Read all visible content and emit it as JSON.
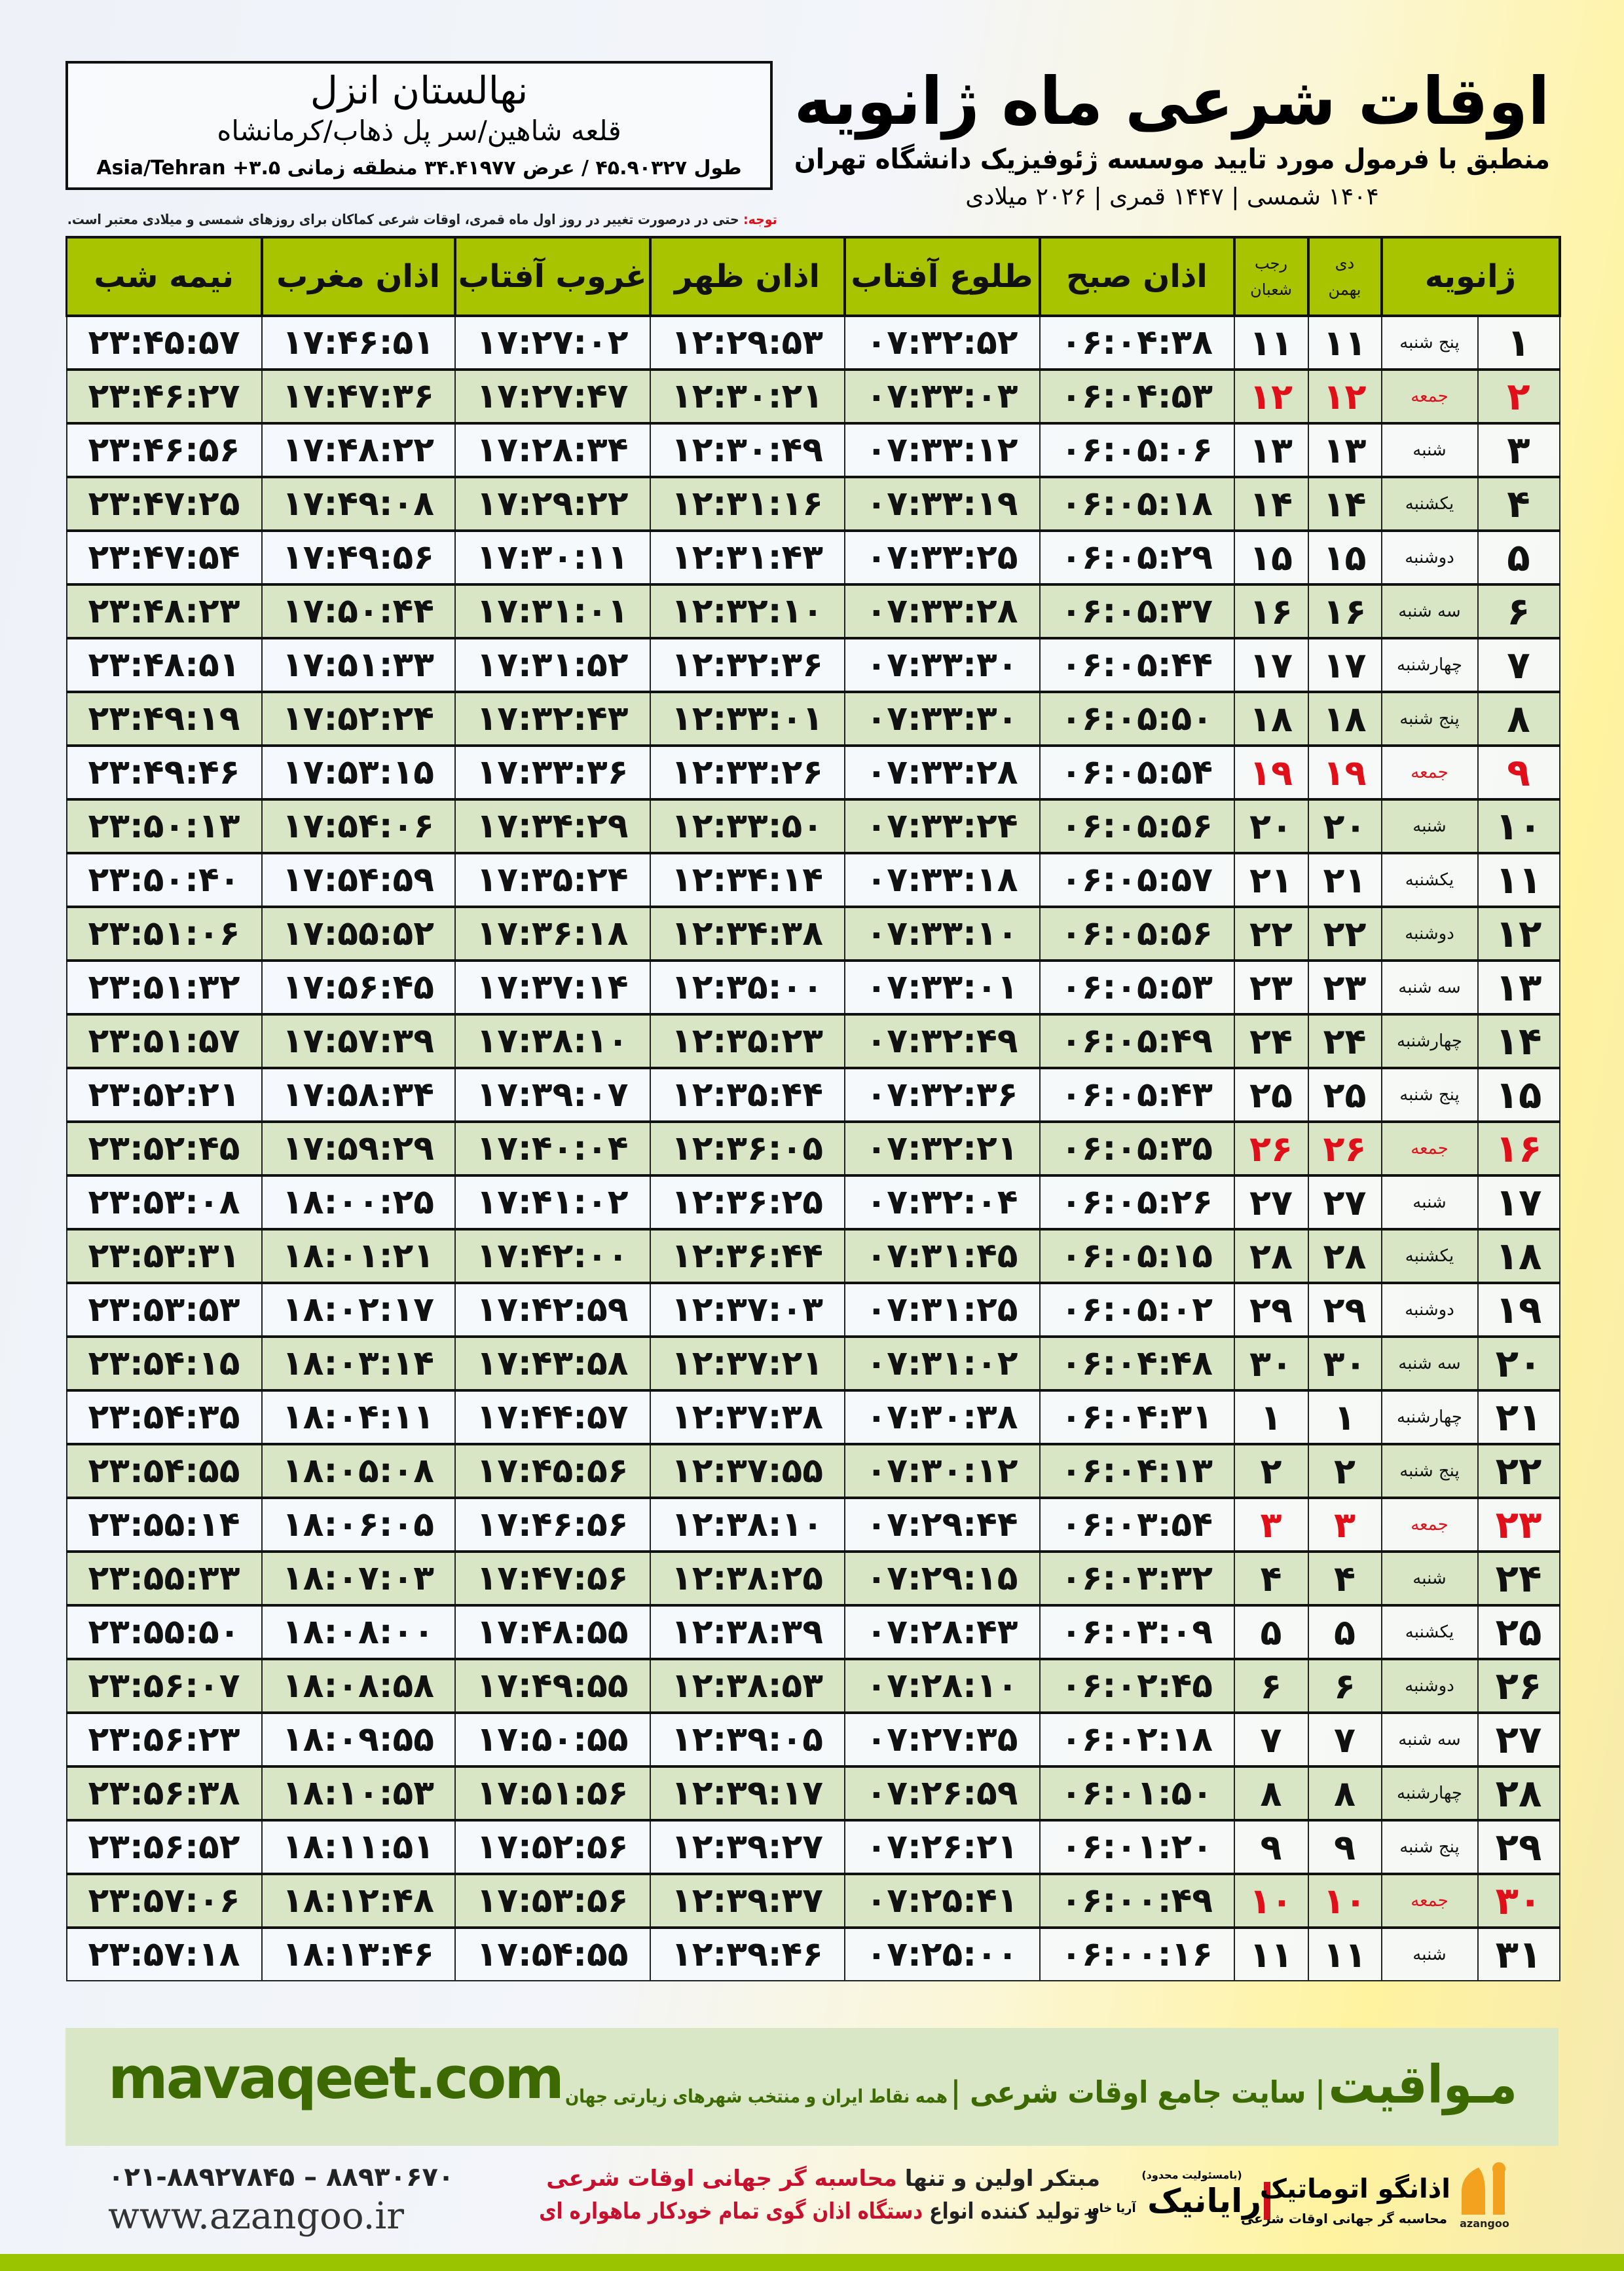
{
  "header": {
    "title": "اوقات شرعی ماه ژانویه",
    "subtitle": "منطبق با فرمول مورد تایید موسسه ژئوفیزیک دانشگاه تهران",
    "years": "۱۴۰۴ شمسی | ۱۴۴۷ قمری | ۲۰۲۶ میلادی"
  },
  "location": {
    "city": "نهالستان انزل",
    "region": "قلعه شاهین/سر پل ذهاب/کرمانشاه",
    "coords": "طول ۴۵.۹۰۳۲۷ / عرض ۳۴.۴۱۹۷۷ منطقه زمانی ۳.۵+ Asia/Tehran"
  },
  "note": {
    "label": "توجه:",
    "text": " حتی در درصورت تغییر در روز اول ماه قمری، اوقات شرعی کماکان برای روزهای شمسی و میلادی معتبر است."
  },
  "columns": {
    "month": "ژانویه",
    "shamsi_top": "دی",
    "shamsi_bottom": "بهمن",
    "qamari_top": "رجب",
    "qamari_bottom": "شعبان",
    "fajr": "اذان صبح",
    "sunrise": "طلوع آفتاب",
    "dhuhr": "اذان ظهر",
    "sunset": "غروب آفتاب",
    "maghrib": "اذان مغرب",
    "midnight": "نیمه شب"
  },
  "colors": {
    "header_green": "#a8c400",
    "row_green": "#d8e6c6",
    "friday_red": "#e0101a",
    "brand_green": "#3c6a00"
  },
  "rows": [
    {
      "day": "۱",
      "weekday": "پنج شنبه",
      "shamsi": "۱۱",
      "qamari": "۱۱",
      "fajr": "۰۶:۰۴:۳۸",
      "sunrise": "۰۷:۳۲:۵۲",
      "dhuhr": "۱۲:۲۹:۵۳",
      "sunset": "۱۷:۲۷:۰۲",
      "maghrib": "۱۷:۴۶:۵۱",
      "midnight": "۲۳:۴۵:۵۷",
      "friday": false
    },
    {
      "day": "۲",
      "weekday": "جمعه",
      "shamsi": "۱۲",
      "qamari": "۱۲",
      "fajr": "۰۶:۰۴:۵۳",
      "sunrise": "۰۷:۳۳:۰۳",
      "dhuhr": "۱۲:۳۰:۲۱",
      "sunset": "۱۷:۲۷:۴۷",
      "maghrib": "۱۷:۴۷:۳۶",
      "midnight": "۲۳:۴۶:۲۷",
      "friday": true
    },
    {
      "day": "۳",
      "weekday": "شنبه",
      "shamsi": "۱۳",
      "qamari": "۱۳",
      "fajr": "۰۶:۰۵:۰۶",
      "sunrise": "۰۷:۳۳:۱۲",
      "dhuhr": "۱۲:۳۰:۴۹",
      "sunset": "۱۷:۲۸:۳۴",
      "maghrib": "۱۷:۴۸:۲۲",
      "midnight": "۲۳:۴۶:۵۶",
      "friday": false
    },
    {
      "day": "۴",
      "weekday": "یکشنبه",
      "shamsi": "۱۴",
      "qamari": "۱۴",
      "fajr": "۰۶:۰۵:۱۸",
      "sunrise": "۰۷:۳۳:۱۹",
      "dhuhr": "۱۲:۳۱:۱۶",
      "sunset": "۱۷:۲۹:۲۲",
      "maghrib": "۱۷:۴۹:۰۸",
      "midnight": "۲۳:۴۷:۲۵",
      "friday": false
    },
    {
      "day": "۵",
      "weekday": "دوشنبه",
      "shamsi": "۱۵",
      "qamari": "۱۵",
      "fajr": "۰۶:۰۵:۲۹",
      "sunrise": "۰۷:۳۳:۲۵",
      "dhuhr": "۱۲:۳۱:۴۳",
      "sunset": "۱۷:۳۰:۱۱",
      "maghrib": "۱۷:۴۹:۵۶",
      "midnight": "۲۳:۴۷:۵۴",
      "friday": false
    },
    {
      "day": "۶",
      "weekday": "سه شنبه",
      "shamsi": "۱۶",
      "qamari": "۱۶",
      "fajr": "۰۶:۰۵:۳۷",
      "sunrise": "۰۷:۳۳:۲۸",
      "dhuhr": "۱۲:۳۲:۱۰",
      "sunset": "۱۷:۳۱:۰۱",
      "maghrib": "۱۷:۵۰:۴۴",
      "midnight": "۲۳:۴۸:۲۳",
      "friday": false
    },
    {
      "day": "۷",
      "weekday": "چهارشنبه",
      "shamsi": "۱۷",
      "qamari": "۱۷",
      "fajr": "۰۶:۰۵:۴۴",
      "sunrise": "۰۷:۳۳:۳۰",
      "dhuhr": "۱۲:۳۲:۳۶",
      "sunset": "۱۷:۳۱:۵۲",
      "maghrib": "۱۷:۵۱:۳۳",
      "midnight": "۲۳:۴۸:۵۱",
      "friday": false
    },
    {
      "day": "۸",
      "weekday": "پنج شنبه",
      "shamsi": "۱۸",
      "qamari": "۱۸",
      "fajr": "۰۶:۰۵:۵۰",
      "sunrise": "۰۷:۳۳:۳۰",
      "dhuhr": "۱۲:۳۳:۰۱",
      "sunset": "۱۷:۳۲:۴۳",
      "maghrib": "۱۷:۵۲:۲۴",
      "midnight": "۲۳:۴۹:۱۹",
      "friday": false
    },
    {
      "day": "۹",
      "weekday": "جمعه",
      "shamsi": "۱۹",
      "qamari": "۱۹",
      "fajr": "۰۶:۰۵:۵۴",
      "sunrise": "۰۷:۳۳:۲۸",
      "dhuhr": "۱۲:۳۳:۲۶",
      "sunset": "۱۷:۳۳:۳۶",
      "maghrib": "۱۷:۵۳:۱۵",
      "midnight": "۲۳:۴۹:۴۶",
      "friday": true
    },
    {
      "day": "۱۰",
      "weekday": "شنبه",
      "shamsi": "۲۰",
      "qamari": "۲۰",
      "fajr": "۰۶:۰۵:۵۶",
      "sunrise": "۰۷:۳۳:۲۴",
      "dhuhr": "۱۲:۳۳:۵۰",
      "sunset": "۱۷:۳۴:۲۹",
      "maghrib": "۱۷:۵۴:۰۶",
      "midnight": "۲۳:۵۰:۱۳",
      "friday": false
    },
    {
      "day": "۱۱",
      "weekday": "یکشنبه",
      "shamsi": "۲۱",
      "qamari": "۲۱",
      "fajr": "۰۶:۰۵:۵۷",
      "sunrise": "۰۷:۳۳:۱۸",
      "dhuhr": "۱۲:۳۴:۱۴",
      "sunset": "۱۷:۳۵:۲۴",
      "maghrib": "۱۷:۵۴:۵۹",
      "midnight": "۲۳:۵۰:۴۰",
      "friday": false
    },
    {
      "day": "۱۲",
      "weekday": "دوشنبه",
      "shamsi": "۲۲",
      "qamari": "۲۲",
      "fajr": "۰۶:۰۵:۵۶",
      "sunrise": "۰۷:۳۳:۱۰",
      "dhuhr": "۱۲:۳۴:۳۸",
      "sunset": "۱۷:۳۶:۱۸",
      "maghrib": "۱۷:۵۵:۵۲",
      "midnight": "۲۳:۵۱:۰۶",
      "friday": false
    },
    {
      "day": "۱۳",
      "weekday": "سه شنبه",
      "shamsi": "۲۳",
      "qamari": "۲۳",
      "fajr": "۰۶:۰۵:۵۳",
      "sunrise": "۰۷:۳۳:۰۱",
      "dhuhr": "۱۲:۳۵:۰۰",
      "sunset": "۱۷:۳۷:۱۴",
      "maghrib": "۱۷:۵۶:۴۵",
      "midnight": "۲۳:۵۱:۳۲",
      "friday": false
    },
    {
      "day": "۱۴",
      "weekday": "چهارشنبه",
      "shamsi": "۲۴",
      "qamari": "۲۴",
      "fajr": "۰۶:۰۵:۴۹",
      "sunrise": "۰۷:۳۲:۴۹",
      "dhuhr": "۱۲:۳۵:۲۳",
      "sunset": "۱۷:۳۸:۱۰",
      "maghrib": "۱۷:۵۷:۳۹",
      "midnight": "۲۳:۵۱:۵۷",
      "friday": false
    },
    {
      "day": "۱۵",
      "weekday": "پنج شنبه",
      "shamsi": "۲۵",
      "qamari": "۲۵",
      "fajr": "۰۶:۰۵:۴۳",
      "sunrise": "۰۷:۳۲:۳۶",
      "dhuhr": "۱۲:۳۵:۴۴",
      "sunset": "۱۷:۳۹:۰۷",
      "maghrib": "۱۷:۵۸:۳۴",
      "midnight": "۲۳:۵۲:۲۱",
      "friday": false
    },
    {
      "day": "۱۶",
      "weekday": "جمعه",
      "shamsi": "۲۶",
      "qamari": "۲۶",
      "fajr": "۰۶:۰۵:۳۵",
      "sunrise": "۰۷:۳۲:۲۱",
      "dhuhr": "۱۲:۳۶:۰۵",
      "sunset": "۱۷:۴۰:۰۴",
      "maghrib": "۱۷:۵۹:۲۹",
      "midnight": "۲۳:۵۲:۴۵",
      "friday": true
    },
    {
      "day": "۱۷",
      "weekday": "شنبه",
      "shamsi": "۲۷",
      "qamari": "۲۷",
      "fajr": "۰۶:۰۵:۲۶",
      "sunrise": "۰۷:۳۲:۰۴",
      "dhuhr": "۱۲:۳۶:۲۵",
      "sunset": "۱۷:۴۱:۰۲",
      "maghrib": "۱۸:۰۰:۲۵",
      "midnight": "۲۳:۵۳:۰۸",
      "friday": false
    },
    {
      "day": "۱۸",
      "weekday": "یکشنبه",
      "shamsi": "۲۸",
      "qamari": "۲۸",
      "fajr": "۰۶:۰۵:۱۵",
      "sunrise": "۰۷:۳۱:۴۵",
      "dhuhr": "۱۲:۳۶:۴۴",
      "sunset": "۱۷:۴۲:۰۰",
      "maghrib": "۱۸:۰۱:۲۱",
      "midnight": "۲۳:۵۳:۳۱",
      "friday": false
    },
    {
      "day": "۱۹",
      "weekday": "دوشنبه",
      "shamsi": "۲۹",
      "qamari": "۲۹",
      "fajr": "۰۶:۰۵:۰۲",
      "sunrise": "۰۷:۳۱:۲۵",
      "dhuhr": "۱۲:۳۷:۰۳",
      "sunset": "۱۷:۴۲:۵۹",
      "maghrib": "۱۸:۰۲:۱۷",
      "midnight": "۲۳:۵۳:۵۳",
      "friday": false
    },
    {
      "day": "۲۰",
      "weekday": "سه شنبه",
      "shamsi": "۳۰",
      "qamari": "۳۰",
      "fajr": "۰۶:۰۴:۴۸",
      "sunrise": "۰۷:۳۱:۰۲",
      "dhuhr": "۱۲:۳۷:۲۱",
      "sunset": "۱۷:۴۳:۵۸",
      "maghrib": "۱۸:۰۳:۱۴",
      "midnight": "۲۳:۵۴:۱۵",
      "friday": false
    },
    {
      "day": "۲۱",
      "weekday": "چهارشنبه",
      "shamsi": "۱",
      "qamari": "۱",
      "fajr": "۰۶:۰۴:۳۱",
      "sunrise": "۰۷:۳۰:۳۸",
      "dhuhr": "۱۲:۳۷:۳۸",
      "sunset": "۱۷:۴۴:۵۷",
      "maghrib": "۱۸:۰۴:۱۱",
      "midnight": "۲۳:۵۴:۳۵",
      "friday": false
    },
    {
      "day": "۲۲",
      "weekday": "پنج شنبه",
      "shamsi": "۲",
      "qamari": "۲",
      "fajr": "۰۶:۰۴:۱۳",
      "sunrise": "۰۷:۳۰:۱۲",
      "dhuhr": "۱۲:۳۷:۵۵",
      "sunset": "۱۷:۴۵:۵۶",
      "maghrib": "۱۸:۰۵:۰۸",
      "midnight": "۲۳:۵۴:۵۵",
      "friday": false
    },
    {
      "day": "۲۳",
      "weekday": "جمعه",
      "shamsi": "۳",
      "qamari": "۳",
      "fajr": "۰۶:۰۳:۵۴",
      "sunrise": "۰۷:۲۹:۴۴",
      "dhuhr": "۱۲:۳۸:۱۰",
      "sunset": "۱۷:۴۶:۵۶",
      "maghrib": "۱۸:۰۶:۰۵",
      "midnight": "۲۳:۵۵:۱۴",
      "friday": true
    },
    {
      "day": "۲۴",
      "weekday": "شنبه",
      "shamsi": "۴",
      "qamari": "۴",
      "fajr": "۰۶:۰۳:۳۲",
      "sunrise": "۰۷:۲۹:۱۵",
      "dhuhr": "۱۲:۳۸:۲۵",
      "sunset": "۱۷:۴۷:۵۶",
      "maghrib": "۱۸:۰۷:۰۳",
      "midnight": "۲۳:۵۵:۳۳",
      "friday": false
    },
    {
      "day": "۲۵",
      "weekday": "یکشنبه",
      "shamsi": "۵",
      "qamari": "۵",
      "fajr": "۰۶:۰۳:۰۹",
      "sunrise": "۰۷:۲۸:۴۳",
      "dhuhr": "۱۲:۳۸:۳۹",
      "sunset": "۱۷:۴۸:۵۵",
      "maghrib": "۱۸:۰۸:۰۰",
      "midnight": "۲۳:۵۵:۵۰",
      "friday": false
    },
    {
      "day": "۲۶",
      "weekday": "دوشنبه",
      "shamsi": "۶",
      "qamari": "۶",
      "fajr": "۰۶:۰۲:۴۵",
      "sunrise": "۰۷:۲۸:۱۰",
      "dhuhr": "۱۲:۳۸:۵۳",
      "sunset": "۱۷:۴۹:۵۵",
      "maghrib": "۱۸:۰۸:۵۸",
      "midnight": "۲۳:۵۶:۰۷",
      "friday": false
    },
    {
      "day": "۲۷",
      "weekday": "سه شنبه",
      "shamsi": "۷",
      "qamari": "۷",
      "fajr": "۰۶:۰۲:۱۸",
      "sunrise": "۰۷:۲۷:۳۵",
      "dhuhr": "۱۲:۳۹:۰۵",
      "sunset": "۱۷:۵۰:۵۵",
      "maghrib": "۱۸:۰۹:۵۵",
      "midnight": "۲۳:۵۶:۲۳",
      "friday": false
    },
    {
      "day": "۲۸",
      "weekday": "چهارشنبه",
      "shamsi": "۸",
      "qamari": "۸",
      "fajr": "۰۶:۰۱:۵۰",
      "sunrise": "۰۷:۲۶:۵۹",
      "dhuhr": "۱۲:۳۹:۱۷",
      "sunset": "۱۷:۵۱:۵۶",
      "maghrib": "۱۸:۱۰:۵۳",
      "midnight": "۲۳:۵۶:۳۸",
      "friday": false
    },
    {
      "day": "۲۹",
      "weekday": "پنج شنبه",
      "shamsi": "۹",
      "qamari": "۹",
      "fajr": "۰۶:۰۱:۲۰",
      "sunrise": "۰۷:۲۶:۲۱",
      "dhuhr": "۱۲:۳۹:۲۷",
      "sunset": "۱۷:۵۲:۵۶",
      "maghrib": "۱۸:۱۱:۵۱",
      "midnight": "۲۳:۵۶:۵۲",
      "friday": false
    },
    {
      "day": "۳۰",
      "weekday": "جمعه",
      "shamsi": "۱۰",
      "qamari": "۱۰",
      "fajr": "۰۶:۰۰:۴۹",
      "sunrise": "۰۷:۲۵:۴۱",
      "dhuhr": "۱۲:۳۹:۳۷",
      "sunset": "۱۷:۵۳:۵۶",
      "maghrib": "۱۸:۱۲:۴۸",
      "midnight": "۲۳:۵۷:۰۶",
      "friday": true
    },
    {
      "day": "۳۱",
      "weekday": "شنبه",
      "shamsi": "۱۱",
      "qamari": "۱۱",
      "fajr": "۰۶:۰۰:۱۶",
      "sunrise": "۰۷:۲۵:۰۰",
      "dhuhr": "۱۲:۳۹:۴۶",
      "sunset": "۱۷:۵۴:۵۵",
      "maghrib": "۱۸:۱۳:۴۶",
      "midnight": "۲۳:۵۷:۱۸",
      "friday": false
    }
  ],
  "footer": {
    "site_url": "mavaqeet.com",
    "brand": "مـواقیت",
    "slogan": "| سایت جامع اوقات شرعی |",
    "slogan_small": "همه نقاط ایران و منتخب شهرهای زیارتی جهان",
    "phones": "۰۲۱-۸۸۹۲۷۸۴۵ – ۸۸۹۳۰۶۷۰",
    "azangoo_url": "www.azangoo.ir",
    "promo_line1_a": "مبتکر اولین و تنها ",
    "promo_line1_b": "محاسبه گر جهانی اوقات شرعی",
    "promo_line2_a": "و تولید کننده انواع ",
    "promo_line2_b": "دستگاه اذان گوی تمام خودکار ماهواره ای",
    "rayanik_note": "(بامسئولیت محدود)",
    "rayanik_name": "رایانیک",
    "rayanik_sub": "آریا خاور",
    "azangoo_name": "اذانگو اتوماتیک",
    "azangoo_sub": "محاسبه گر جهانی اوقات شرعی",
    "azangoo_latin": "azangoo"
  }
}
